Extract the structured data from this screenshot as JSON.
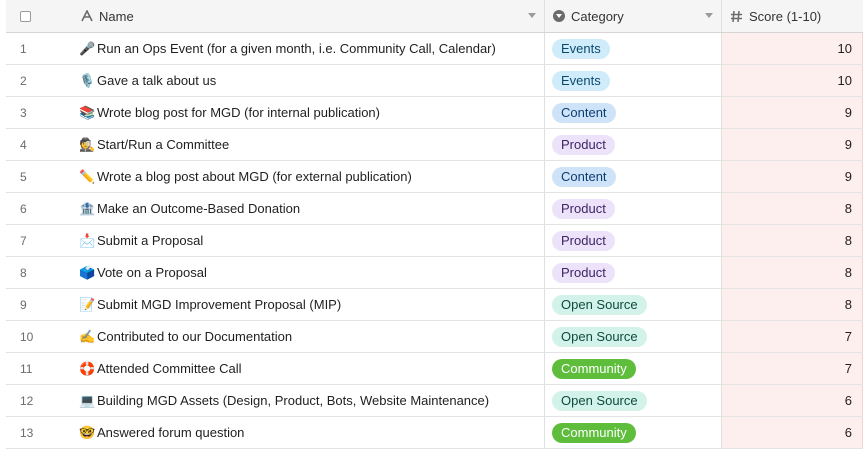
{
  "header": {
    "name_label": "Name",
    "name_icon": "text-field-icon",
    "category_label": "Category",
    "category_icon": "single-select-icon",
    "score_label": "Score (1-10)",
    "score_icon": "number-hash-icon"
  },
  "category_colors": {
    "Events": {
      "bg": "#d0ecfa",
      "fg": "#0b4a6f"
    },
    "Content": {
      "bg": "#cfe3f8",
      "fg": "#0c3e73"
    },
    "Product": {
      "bg": "#ece3fa",
      "fg": "#3d2466"
    },
    "Open Source": {
      "bg": "#d3f2ea",
      "fg": "#0d4a3c"
    },
    "Community": {
      "bg": "#5ebe3c",
      "fg": "#ffffff"
    }
  },
  "rows": [
    {
      "num": "1",
      "emoji": "🎤",
      "name": "Run an Ops Event (for a given month, i.e. Community Call, Calendar)",
      "category": "Events",
      "score": "10"
    },
    {
      "num": "2",
      "emoji": "🎙️",
      "name": "Gave a talk about us",
      "category": "Events",
      "score": "10"
    },
    {
      "num": "3",
      "emoji": "📚",
      "name": "Wrote blog post for MGD (for internal publication)",
      "category": "Content",
      "score": "9"
    },
    {
      "num": "4",
      "emoji": "🕵️",
      "name": "Start/Run a Committee",
      "category": "Product",
      "score": "9"
    },
    {
      "num": "5",
      "emoji": "✏️",
      "name": "Wrote a blog post about MGD (for external publication)",
      "category": "Content",
      "score": "9"
    },
    {
      "num": "6",
      "emoji": "🏦",
      "name": "Make an Outcome-Based Donation",
      "category": "Product",
      "score": "8"
    },
    {
      "num": "7",
      "emoji": "📩",
      "name": "Submit a Proposal",
      "category": "Product",
      "score": "8"
    },
    {
      "num": "8",
      "emoji": "🗳️",
      "name": "Vote on a Proposal",
      "category": "Product",
      "score": "8"
    },
    {
      "num": "9",
      "emoji": "📝",
      "name": "Submit MGD Improvement Proposal (MIP)",
      "category": "Open Source",
      "score": "8"
    },
    {
      "num": "10",
      "emoji": "✍️",
      "name": "Contributed to our Documentation",
      "category": "Open Source",
      "score": "7"
    },
    {
      "num": "11",
      "emoji": "🛟",
      "name": "Attended Committee Call",
      "category": "Community",
      "score": "7"
    },
    {
      "num": "12",
      "emoji": "💻",
      "name": "Building MGD Assets (Design, Product, Bots, Website Maintenance)",
      "category": "Open Source",
      "score": "6"
    },
    {
      "num": "13",
      "emoji": "🤓",
      "name": "Answered forum question",
      "category": "Community",
      "score": "6"
    }
  ]
}
